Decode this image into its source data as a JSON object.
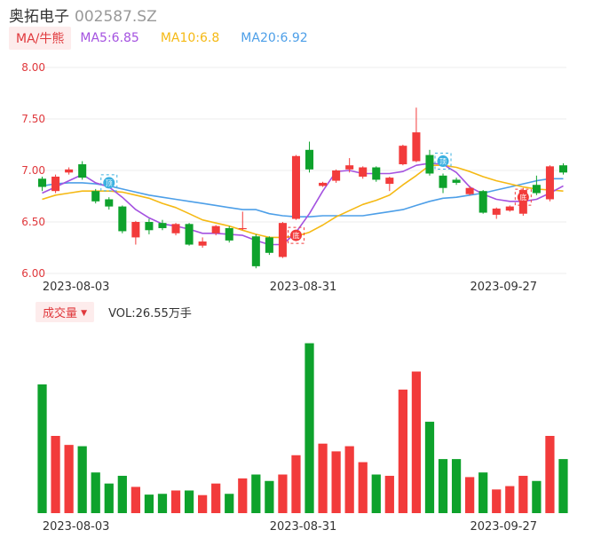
{
  "header": {
    "name": "奥拓电子",
    "code": "002587.SZ"
  },
  "ma_legend": {
    "chip_label": "MA/牛熊",
    "items": [
      {
        "label": "MA5:6.85",
        "color": "#a452e0"
      },
      {
        "label": "MA10:6.8",
        "color": "#f5b914"
      },
      {
        "label": "MA20:6.92",
        "color": "#4d9fe8"
      }
    ]
  },
  "volume_legend": {
    "chip_label": "成交量",
    "chip_arrow": "▼",
    "value_label": "VOL:26.55万手"
  },
  "colors": {
    "up": "#f23b3b",
    "down": "#0ea22c",
    "grid": "#eeeeee",
    "ytick": "#e0383c"
  },
  "chart_data": [
    {
      "type": "candlestick",
      "ylim": [
        6.0,
        8.0
      ],
      "yticks": [
        "8.00",
        "7.50",
        "7.00",
        "6.50",
        "6.00"
      ],
      "xticks": [
        {
          "label": "2023-08-03",
          "index": 2
        },
        {
          "label": "2023-08-31",
          "index": 19
        },
        {
          "label": "2023-09-27",
          "index": 34
        }
      ],
      "candles": [
        {
          "o": 6.92,
          "c": 6.84,
          "h": 6.94,
          "l": 6.8
        },
        {
          "o": 6.8,
          "c": 6.94,
          "h": 6.96,
          "l": 6.78
        },
        {
          "o": 6.98,
          "c": 7.01,
          "h": 7.03,
          "l": 6.96
        },
        {
          "o": 7.06,
          "c": 6.93,
          "h": 7.09,
          "l": 6.91
        },
        {
          "o": 6.8,
          "c": 6.7,
          "h": 6.82,
          "l": 6.68
        },
        {
          "o": 6.72,
          "c": 6.65,
          "h": 6.74,
          "l": 6.62
        },
        {
          "o": 6.65,
          "c": 6.41,
          "h": 6.66,
          "l": 6.39
        },
        {
          "o": 6.35,
          "c": 6.5,
          "h": 6.51,
          "l": 6.28
        },
        {
          "o": 6.5,
          "c": 6.42,
          "h": 6.53,
          "l": 6.38
        },
        {
          "o": 6.49,
          "c": 6.44,
          "h": 6.52,
          "l": 6.42
        },
        {
          "o": 6.39,
          "c": 6.48,
          "h": 6.49,
          "l": 6.37
        },
        {
          "o": 6.48,
          "c": 6.28,
          "h": 6.49,
          "l": 6.27
        },
        {
          "o": 6.27,
          "c": 6.31,
          "h": 6.35,
          "l": 6.25
        },
        {
          "o": 6.39,
          "c": 6.46,
          "h": 6.47,
          "l": 6.37
        },
        {
          "o": 6.44,
          "c": 6.32,
          "h": 6.46,
          "l": 6.3
        },
        {
          "o": 6.43,
          "c": 6.44,
          "h": 6.6,
          "l": 6.42
        },
        {
          "o": 6.36,
          "c": 6.07,
          "h": 6.38,
          "l": 6.05
        },
        {
          "o": 6.35,
          "c": 6.2,
          "h": 6.36,
          "l": 6.18
        },
        {
          "o": 6.16,
          "c": 6.49,
          "h": 6.5,
          "l": 6.15
        },
        {
          "o": 6.53,
          "c": 7.14,
          "h": 7.15,
          "l": 6.52
        },
        {
          "o": 7.2,
          "c": 7.01,
          "h": 7.28,
          "l": 6.98
        },
        {
          "o": 6.85,
          "c": 6.88,
          "h": 6.89,
          "l": 6.84
        },
        {
          "o": 6.9,
          "c": 7.0,
          "h": 7.01,
          "l": 6.88
        },
        {
          "o": 7.01,
          "c": 7.05,
          "h": 7.12,
          "l": 6.98
        },
        {
          "o": 6.94,
          "c": 7.03,
          "h": 7.04,
          "l": 6.92
        },
        {
          "o": 7.03,
          "c": 6.91,
          "h": 7.04,
          "l": 6.89
        },
        {
          "o": 6.87,
          "c": 6.93,
          "h": 6.94,
          "l": 6.8
        },
        {
          "o": 7.06,
          "c": 7.24,
          "h": 7.25,
          "l": 7.05
        },
        {
          "o": 7.09,
          "c": 7.37,
          "h": 7.61,
          "l": 7.08
        },
        {
          "o": 7.15,
          "c": 6.97,
          "h": 7.2,
          "l": 6.95
        },
        {
          "o": 6.95,
          "c": 6.83,
          "h": 6.97,
          "l": 6.78
        },
        {
          "o": 6.91,
          "c": 6.88,
          "h": 6.93,
          "l": 6.86
        },
        {
          "o": 6.77,
          "c": 6.83,
          "h": 6.85,
          "l": 6.76
        },
        {
          "o": 6.8,
          "c": 6.59,
          "h": 6.81,
          "l": 6.58
        },
        {
          "o": 6.57,
          "c": 6.63,
          "h": 6.64,
          "l": 6.53
        },
        {
          "o": 6.61,
          "c": 6.65,
          "h": 6.66,
          "l": 6.6
        },
        {
          "o": 6.58,
          "c": 6.81,
          "h": 6.83,
          "l": 6.56
        },
        {
          "o": 6.86,
          "c": 6.78,
          "h": 6.95,
          "l": 6.76
        },
        {
          "o": 6.72,
          "c": 7.04,
          "h": 7.05,
          "l": 6.7
        },
        {
          "o": 7.05,
          "c": 6.98,
          "h": 7.07,
          "l": 6.96
        }
      ],
      "ma5": [
        6.78,
        6.84,
        6.9,
        6.96,
        6.88,
        6.84,
        6.74,
        6.62,
        6.54,
        6.48,
        6.46,
        6.43,
        6.39,
        6.39,
        6.38,
        6.37,
        6.32,
        6.28,
        6.28,
        6.4,
        6.58,
        6.8,
        6.99,
        7.0,
        6.97,
        6.97,
        6.97,
        6.99,
        7.05,
        7.07,
        7.06,
        6.98,
        6.84,
        6.77,
        6.72,
        6.7,
        6.7,
        6.72,
        6.78,
        6.85
      ],
      "ma10": [
        6.72,
        6.76,
        6.78,
        6.8,
        6.8,
        6.8,
        6.79,
        6.76,
        6.73,
        6.68,
        6.64,
        6.58,
        6.52,
        6.49,
        6.46,
        6.42,
        6.38,
        6.35,
        6.35,
        6.36,
        6.4,
        6.47,
        6.55,
        6.61,
        6.67,
        6.71,
        6.76,
        6.86,
        6.95,
        7.05,
        7.05,
        7.03,
        6.99,
        6.94,
        6.9,
        6.87,
        6.84,
        6.82,
        6.81,
        6.8
      ],
      "ma20": [
        6.85,
        6.87,
        6.88,
        6.88,
        6.87,
        6.85,
        6.82,
        6.79,
        6.76,
        6.74,
        6.72,
        6.7,
        6.68,
        6.66,
        6.64,
        6.62,
        6.62,
        6.58,
        6.56,
        6.55,
        6.55,
        6.56,
        6.56,
        6.56,
        6.56,
        6.58,
        6.6,
        6.62,
        6.66,
        6.7,
        6.73,
        6.74,
        6.76,
        6.78,
        6.81,
        6.84,
        6.87,
        6.9,
        6.92,
        6.92
      ],
      "badges": [
        {
          "index": 5,
          "price": 6.88,
          "text": "顶",
          "color": "#3ab0e0"
        },
        {
          "index": 19,
          "price": 6.37,
          "text": "底",
          "color": "#f23b3b"
        },
        {
          "index": 30,
          "price": 7.09,
          "text": "顶",
          "color": "#3ab0e0"
        },
        {
          "index": 36,
          "price": 6.74,
          "text": "底",
          "color": "#f23b3b"
        }
      ]
    },
    {
      "type": "bar",
      "volumes": [
        50.0,
        30.0,
        26.5,
        26.0,
        15.8,
        11.5,
        14.5,
        10.2,
        7.2,
        7.5,
        8.8,
        8.8,
        7.0,
        11.5,
        7.5,
        13.5,
        15.0,
        12.5,
        15.0,
        22.5,
        66.0,
        27.0,
        24.0,
        26.0,
        19.8,
        15.0,
        14.5,
        48.0,
        55.0,
        35.5,
        21.0,
        21.0,
        14.0,
        15.8,
        9.2,
        10.5,
        14.5,
        12.5,
        30.0,
        21.0
      ],
      "ylim": [
        0,
        70
      ]
    }
  ]
}
